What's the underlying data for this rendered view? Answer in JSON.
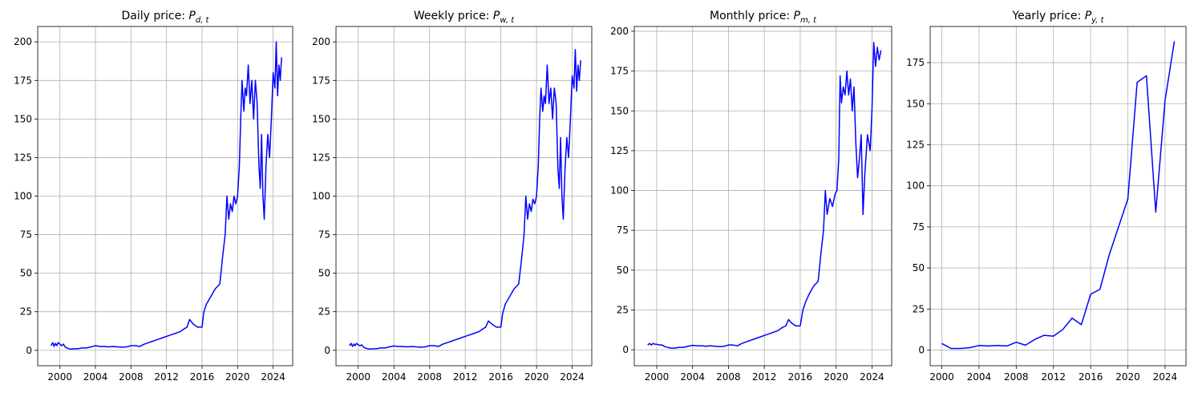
{
  "chart_data": [
    {
      "type": "line",
      "title_text": "Daily price: ",
      "title_var": "P",
      "title_sub": "d, t",
      "xlim": [
        1997.5,
        2026.2
      ],
      "ylim": [
        -10,
        210
      ],
      "xticks": [
        2000,
        2004,
        2008,
        2012,
        2016,
        2020,
        2024
      ],
      "yticks": [
        0,
        25,
        50,
        75,
        100,
        125,
        150,
        175,
        200
      ],
      "grid": true,
      "color": "#0000ff",
      "series": [
        {
          "x": [
            1999.0,
            1999.2,
            1999.35,
            1999.5,
            1999.65,
            1999.8,
            2000.0,
            2000.2,
            2000.4,
            2000.6,
            2000.8,
            2001.0,
            2001.3,
            2001.6,
            2002.0,
            2002.5,
            2003.0,
            2003.5,
            2004.0,
            2004.5,
            2005.0,
            2005.5,
            2006.0,
            2006.5,
            2007.0,
            2007.5,
            2008.0,
            2008.5,
            2009.0,
            2009.5,
            2010.0,
            2010.5,
            2011.0,
            2011.5,
            2012.0,
            2012.5,
            2013.0,
            2013.5,
            2014.0,
            2014.3,
            2014.6,
            2015.0,
            2015.5,
            2016.0,
            2016.2,
            2016.5,
            2017.0,
            2017.5,
            2018.0,
            2018.3,
            2018.6,
            2018.8,
            2019.0,
            2019.2,
            2019.4,
            2019.6,
            2019.8,
            2020.0,
            2020.2,
            2020.35,
            2020.5,
            2020.7,
            2020.85,
            2021.0,
            2021.2,
            2021.4,
            2021.6,
            2021.8,
            2022.0,
            2022.2,
            2022.4,
            2022.55,
            2022.7,
            2022.85,
            2023.0,
            2023.2,
            2023.4,
            2023.6,
            2023.8,
            2024.0,
            2024.2,
            2024.35,
            2024.5,
            2024.65,
            2024.8,
            2024.95
          ],
          "y": [
            3,
            5,
            2.5,
            4.5,
            3,
            5,
            4,
            3,
            4,
            2,
            1.5,
            1,
            0.8,
            1,
            1,
            1.5,
            1.5,
            2.2,
            3,
            2.5,
            2.5,
            2.2,
            2.5,
            2.2,
            2,
            2.2,
            3,
            3,
            2.5,
            4,
            5,
            6,
            7,
            8,
            9,
            10,
            11,
            12,
            14,
            15,
            20,
            17,
            15,
            15,
            25,
            30,
            35,
            40,
            43,
            60,
            75,
            100,
            85,
            95,
            90,
            100,
            95,
            100,
            120,
            150,
            175,
            155,
            170,
            165,
            185,
            160,
            175,
            150,
            175,
            160,
            120,
            105,
            140,
            100,
            85,
            120,
            140,
            125,
            150,
            180,
            170,
            200,
            165,
            185,
            175,
            190
          ]
        }
      ]
    },
    {
      "type": "line",
      "title_text": "Weekly price: ",
      "title_var": "P",
      "title_sub": "w, t",
      "xlim": [
        1997.5,
        2026.2
      ],
      "ylim": [
        -10,
        210
      ],
      "xticks": [
        2000,
        2004,
        2008,
        2012,
        2016,
        2020,
        2024
      ],
      "yticks": [
        0,
        25,
        50,
        75,
        100,
        125,
        150,
        175,
        200
      ],
      "grid": true,
      "color": "#0000ff",
      "series": [
        {
          "x": [
            1999.0,
            1999.2,
            1999.35,
            1999.5,
            1999.65,
            1999.8,
            2000.0,
            2000.2,
            2000.4,
            2000.6,
            2000.8,
            2001.0,
            2001.3,
            2001.6,
            2002.0,
            2002.5,
            2003.0,
            2003.5,
            2004.0,
            2004.5,
            2005.0,
            2005.5,
            2006.0,
            2006.5,
            2007.0,
            2007.5,
            2008.0,
            2008.5,
            2009.0,
            2009.5,
            2010.0,
            2010.5,
            2011.0,
            2011.5,
            2012.0,
            2012.5,
            2013.0,
            2013.5,
            2014.0,
            2014.3,
            2014.6,
            2015.0,
            2015.5,
            2016.0,
            2016.2,
            2016.5,
            2017.0,
            2017.5,
            2018.0,
            2018.3,
            2018.6,
            2018.8,
            2019.0,
            2019.2,
            2019.4,
            2019.6,
            2019.8,
            2020.0,
            2020.2,
            2020.35,
            2020.5,
            2020.7,
            2020.85,
            2021.0,
            2021.2,
            2021.4,
            2021.6,
            2021.8,
            2022.0,
            2022.2,
            2022.4,
            2022.55,
            2022.7,
            2022.85,
            2023.0,
            2023.2,
            2023.4,
            2023.6,
            2023.8,
            2024.0,
            2024.2,
            2024.35,
            2024.5,
            2024.65,
            2024.8,
            2024.95
          ],
          "y": [
            3,
            4.5,
            2.5,
            4,
            3,
            4.5,
            3.5,
            3,
            3.5,
            2,
            1.5,
            1,
            0.8,
            1,
            1,
            1.5,
            1.5,
            2.2,
            2.8,
            2.5,
            2.5,
            2.2,
            2.5,
            2.2,
            2,
            2.2,
            3,
            3,
            2.5,
            4,
            5,
            6,
            7,
            8,
            9,
            10,
            11,
            12,
            14,
            15,
            19,
            17,
            15,
            15,
            24,
            30,
            35,
            40,
            43,
            58,
            75,
            100,
            85,
            95,
            90,
            98,
            95,
            100,
            120,
            150,
            170,
            155,
            165,
            160,
            185,
            160,
            170,
            150,
            170,
            160,
            118,
            105,
            138,
            100,
            85,
            118,
            138,
            125,
            150,
            178,
            170,
            195,
            168,
            185,
            175,
            188
          ]
        }
      ]
    },
    {
      "type": "line",
      "title_text": "Monthly price: ",
      "title_var": "P",
      "title_sub": "m, t",
      "xlim": [
        1997.5,
        2026.2
      ],
      "ylim": [
        -10,
        203
      ],
      "xticks": [
        2000,
        2004,
        2008,
        2012,
        2016,
        2020,
        2024
      ],
      "yticks": [
        0,
        25,
        50,
        75,
        100,
        125,
        150,
        175,
        200
      ],
      "grid": true,
      "color": "#0000ff",
      "series": [
        {
          "x": [
            1999.0,
            1999.2,
            1999.4,
            1999.6,
            1999.8,
            2000.0,
            2000.3,
            2000.6,
            2000.9,
            2001.2,
            2001.6,
            2002.0,
            2002.5,
            2003.0,
            2003.5,
            2004.0,
            2004.5,
            2005.0,
            2005.5,
            2006.0,
            2006.5,
            2007.0,
            2007.5,
            2008.0,
            2008.5,
            2009.0,
            2009.5,
            2010.0,
            2010.5,
            2011.0,
            2011.5,
            2012.0,
            2012.5,
            2013.0,
            2013.5,
            2014.0,
            2014.4,
            2014.7,
            2015.0,
            2015.5,
            2016.0,
            2016.3,
            2016.6,
            2017.0,
            2017.5,
            2018.0,
            2018.3,
            2018.6,
            2018.8,
            2019.0,
            2019.3,
            2019.6,
            2019.9,
            2020.1,
            2020.3,
            2020.45,
            2020.6,
            2020.8,
            2021.0,
            2021.2,
            2021.4,
            2021.6,
            2021.8,
            2022.0,
            2022.2,
            2022.4,
            2022.6,
            2022.8,
            2023.0,
            2023.2,
            2023.5,
            2023.8,
            2024.0,
            2024.2,
            2024.4,
            2024.6,
            2024.8,
            2025.0
          ],
          "y": [
            3,
            4,
            3,
            4,
            3.5,
            3.5,
            3,
            3,
            2,
            1.5,
            1,
            1,
            1.5,
            1.5,
            2.2,
            2.8,
            2.5,
            2.5,
            2.2,
            2.5,
            2.2,
            2,
            2.2,
            3,
            3,
            2.5,
            4,
            5,
            6,
            7,
            8,
            9,
            10,
            11,
            12,
            14,
            15,
            19,
            17,
            15,
            15,
            25,
            30,
            35,
            40,
            43,
            60,
            75,
            100,
            85,
            95,
            90,
            98,
            100,
            120,
            172,
            155,
            165,
            160,
            175,
            160,
            170,
            150,
            165,
            130,
            108,
            120,
            135,
            85,
            110,
            135,
            125,
            150,
            193,
            178,
            190,
            182,
            188
          ]
        }
      ]
    },
    {
      "type": "line",
      "title_text": "Yearly price: ",
      "title_var": "P",
      "title_sub": "y, t",
      "xlim": [
        1998.75,
        2026.25
      ],
      "ylim": [
        -9.5,
        197
      ],
      "xticks": [
        2000,
        2004,
        2008,
        2012,
        2016,
        2020,
        2024
      ],
      "yticks": [
        0,
        25,
        50,
        75,
        100,
        125,
        150,
        175
      ],
      "grid": true,
      "color": "#0000ff",
      "series": [
        {
          "x": [
            2000,
            2001,
            2002,
            2003,
            2004,
            2005,
            2006,
            2007,
            2008,
            2009,
            2010,
            2011,
            2012,
            2013,
            2014,
            2015,
            2016,
            2017,
            2018,
            2019,
            2020,
            2021,
            2022,
            2023,
            2024,
            2025
          ],
          "y": [
            4,
            1,
            1,
            1.5,
            2.8,
            2.5,
            2.8,
            2.5,
            4.8,
            3,
            6.5,
            9,
            8.5,
            12.5,
            19.5,
            15.5,
            34,
            37,
            58,
            75,
            92,
            163,
            167,
            84,
            152,
            188
          ]
        }
      ]
    }
  ]
}
